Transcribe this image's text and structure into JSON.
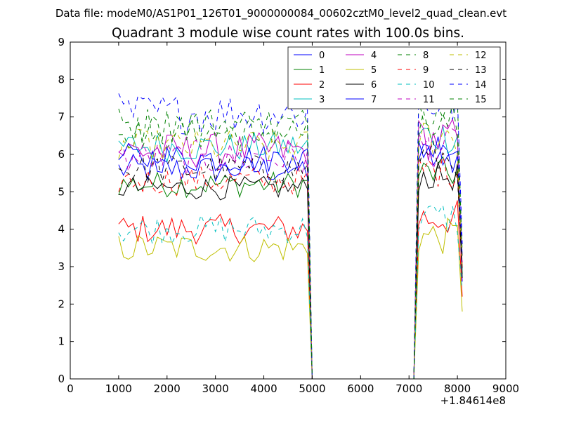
{
  "chart_data": {
    "type": "line",
    "suptitle": "Data file: modeM0/AS1P01_126T01_9000000084_00602cztM0_level2_quad_clean.evt",
    "title": "Quadrant 3 module wise count rates with 100.0s bins.",
    "xlabel": "",
    "ylabel": "",
    "xlim": [
      0,
      9000
    ],
    "ylim": [
      0,
      9
    ],
    "x_offset_label": "+1.84614e8",
    "xticks": [
      0,
      1000,
      2000,
      3000,
      4000,
      5000,
      6000,
      7000,
      8000,
      9000
    ],
    "xtick_labels": [
      "0",
      "1000",
      "2000",
      "3000",
      "4000",
      "5000",
      "6000",
      "7000",
      "8000",
      "9000"
    ],
    "yticks": [
      0,
      1,
      2,
      3,
      4,
      5,
      6,
      7,
      8,
      9
    ],
    "ytick_labels": [
      "0",
      "1",
      "2",
      "3",
      "4",
      "5",
      "6",
      "7",
      "8",
      "9"
    ],
    "grid": false,
    "legend_position": "top-right",
    "x": {
      "segment1_start": 1000,
      "segment1_end": 4900,
      "gap_start": 5000,
      "gap_end": 7100,
      "segment2_start": 7200,
      "segment2_end": 8100,
      "step": 100
    },
    "series": [
      {
        "name": "0",
        "color": "#0000ff",
        "dash": "solid",
        "base": 5.6,
        "amp": 0.25,
        "end": 2.6
      },
      {
        "name": "1",
        "color": "#008000",
        "dash": "solid",
        "base": 5.2,
        "amp": 0.22,
        "end": 2.8
      },
      {
        "name": "2",
        "color": "#ff0000",
        "dash": "solid",
        "base": 4.0,
        "amp": 0.25,
        "end": 2.2
      },
      {
        "name": "3",
        "color": "#00bfbf",
        "dash": "solid",
        "base": 6.2,
        "amp": 0.25,
        "end": 2.9
      },
      {
        "name": "4",
        "color": "#bf00bf",
        "dash": "solid",
        "base": 6.1,
        "amp": 0.3,
        "end": 3.0
      },
      {
        "name": "5",
        "color": "#bfbf00",
        "dash": "solid",
        "base": 3.5,
        "amp": 0.25,
        "end": 1.8
      },
      {
        "name": "6",
        "color": "#000000",
        "dash": "solid",
        "base": 5.1,
        "amp": 0.2,
        "end": 2.7
      },
      {
        "name": "7",
        "color": "#0000ff",
        "dash": "solid",
        "base": 5.9,
        "amp": 0.25,
        "end": 3.3
      },
      {
        "name": "8",
        "color": "#008000",
        "dash": "dashed",
        "base": 6.6,
        "amp": 0.3,
        "end": 3.2
      },
      {
        "name": "9",
        "color": "#ff0000",
        "dash": "dashed",
        "base": 5.3,
        "amp": 0.25,
        "end": 2.9
      },
      {
        "name": "10",
        "color": "#00bfbf",
        "dash": "dashed",
        "base": 4.0,
        "amp": 0.25,
        "end": 2.4
      },
      {
        "name": "11",
        "color": "#bf00bf",
        "dash": "dashed",
        "base": 5.9,
        "amp": 0.3,
        "end": 3.1
      },
      {
        "name": "12",
        "color": "#bfbf00",
        "dash": "dashed",
        "base": 6.2,
        "amp": 0.3,
        "end": 3.0
      },
      {
        "name": "13",
        "color": "#000000",
        "dash": "dashed",
        "base": 5.6,
        "amp": 0.25,
        "end": 2.9
      },
      {
        "name": "14",
        "color": "#0000ff",
        "dash": "dashed",
        "base": 7.1,
        "amp": 0.35,
        "end": 3.6
      },
      {
        "name": "15",
        "color": "#008000",
        "dash": "dashed",
        "base": 6.8,
        "amp": 0.3,
        "end": 3.4
      }
    ]
  }
}
